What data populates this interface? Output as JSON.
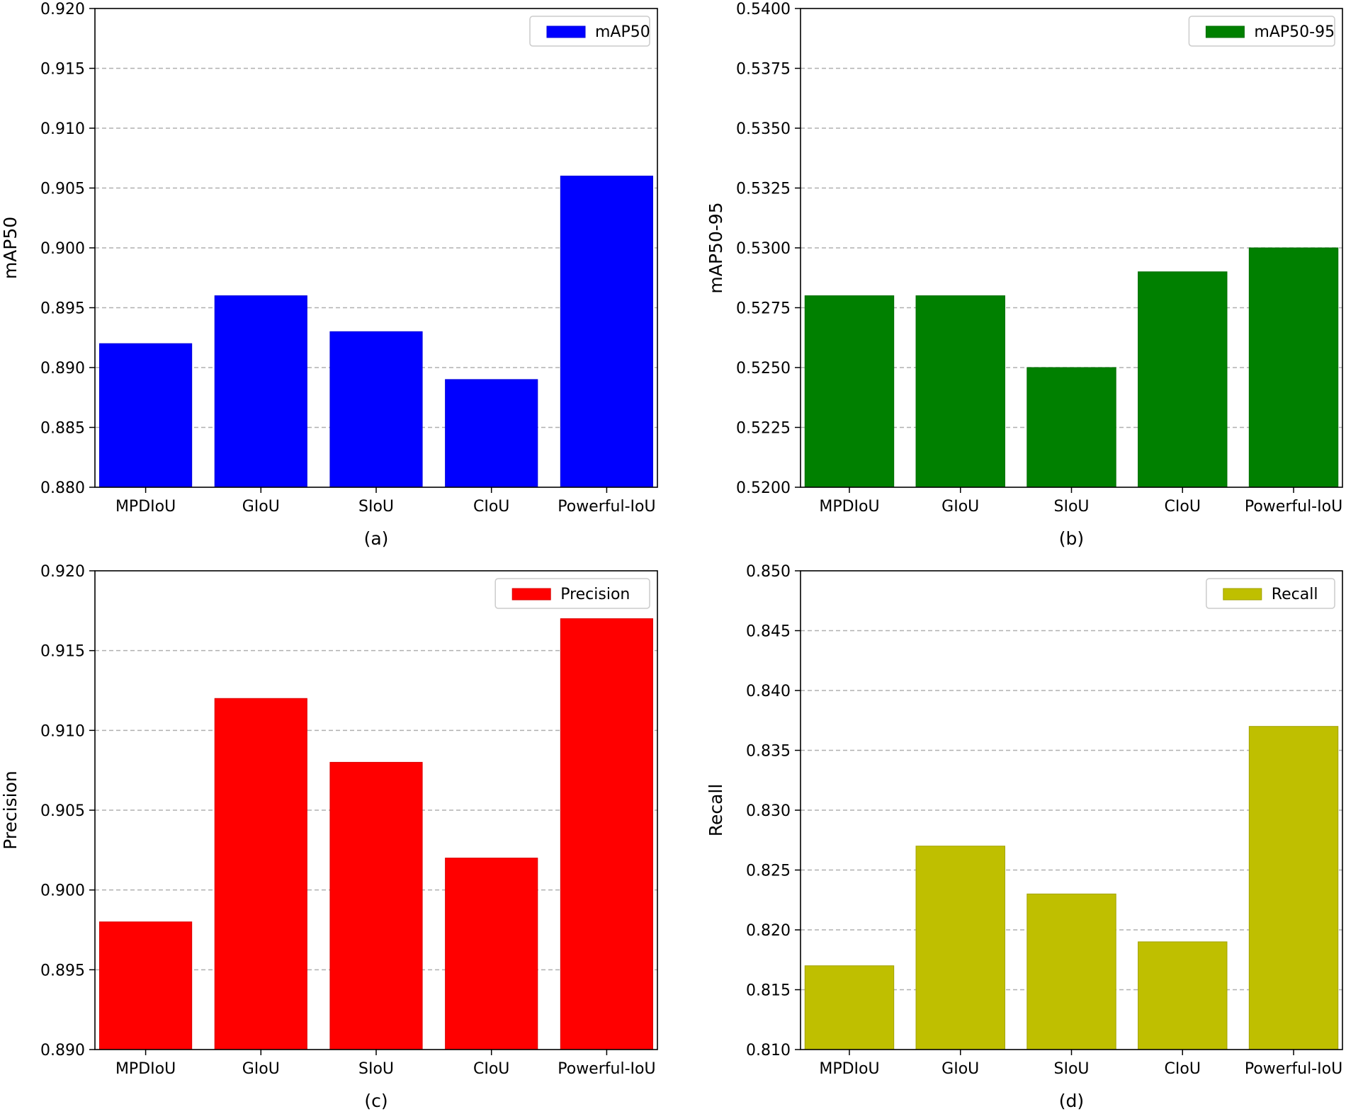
{
  "chart_data": [
    {
      "type": "bar",
      "panel_label": "(a)",
      "categories": [
        "MPDIoU",
        "GIoU",
        "SIoU",
        "CIoU",
        "Powerful-IoU"
      ],
      "values": [
        0.892,
        0.896,
        0.893,
        0.889,
        0.906
      ],
      "series_name": "mAP50",
      "color": "#0000ff",
      "ylabel": "mAP50",
      "ylim": [
        0.88,
        0.92
      ],
      "yticks": [
        "0.880",
        "0.885",
        "0.890",
        "0.895",
        "0.900",
        "0.905",
        "0.910",
        "0.915",
        "0.920"
      ],
      "grid": "y-dashed",
      "legend": "top-right"
    },
    {
      "type": "bar",
      "panel_label": "(b)",
      "categories": [
        "MPDIoU",
        "GIoU",
        "SIoU",
        "CIoU",
        "Powerful-IoU"
      ],
      "values": [
        0.528,
        0.528,
        0.525,
        0.529,
        0.53
      ],
      "series_name": "mAP50-95",
      "color": "#008000",
      "ylabel": "mAP50-95",
      "ylim": [
        0.52,
        0.54
      ],
      "yticks": [
        "0.5200",
        "0.5225",
        "0.5250",
        "0.5275",
        "0.5300",
        "0.5325",
        "0.5350",
        "0.5375",
        "0.5400"
      ],
      "grid": "y-dashed",
      "legend": "top-right"
    },
    {
      "type": "bar",
      "panel_label": "(c)",
      "categories": [
        "MPDIoU",
        "GIoU",
        "SIoU",
        "CIoU",
        "Powerful-IoU"
      ],
      "values": [
        0.898,
        0.912,
        0.908,
        0.902,
        0.917
      ],
      "series_name": "Precision",
      "color": "#ff0000",
      "ylabel": "Precision",
      "ylim": [
        0.89,
        0.92
      ],
      "yticks": [
        "0.890",
        "0.895",
        "0.900",
        "0.905",
        "0.910",
        "0.915",
        "0.920"
      ],
      "grid": "y-dashed",
      "legend": "top-right"
    },
    {
      "type": "bar",
      "panel_label": "(d)",
      "categories": [
        "MPDIoU",
        "GIoU",
        "SIoU",
        "CIoU",
        "Powerful-IoU"
      ],
      "values": [
        0.817,
        0.827,
        0.823,
        0.819,
        0.837
      ],
      "series_name": "Recall",
      "color": "#bfbf00",
      "ylabel": "Recall",
      "ylim": [
        0.81,
        0.85
      ],
      "yticks": [
        "0.810",
        "0.815",
        "0.820",
        "0.825",
        "0.830",
        "0.835",
        "0.840",
        "0.845",
        "0.850"
      ],
      "grid": "y-dashed",
      "legend": "top-right"
    }
  ]
}
